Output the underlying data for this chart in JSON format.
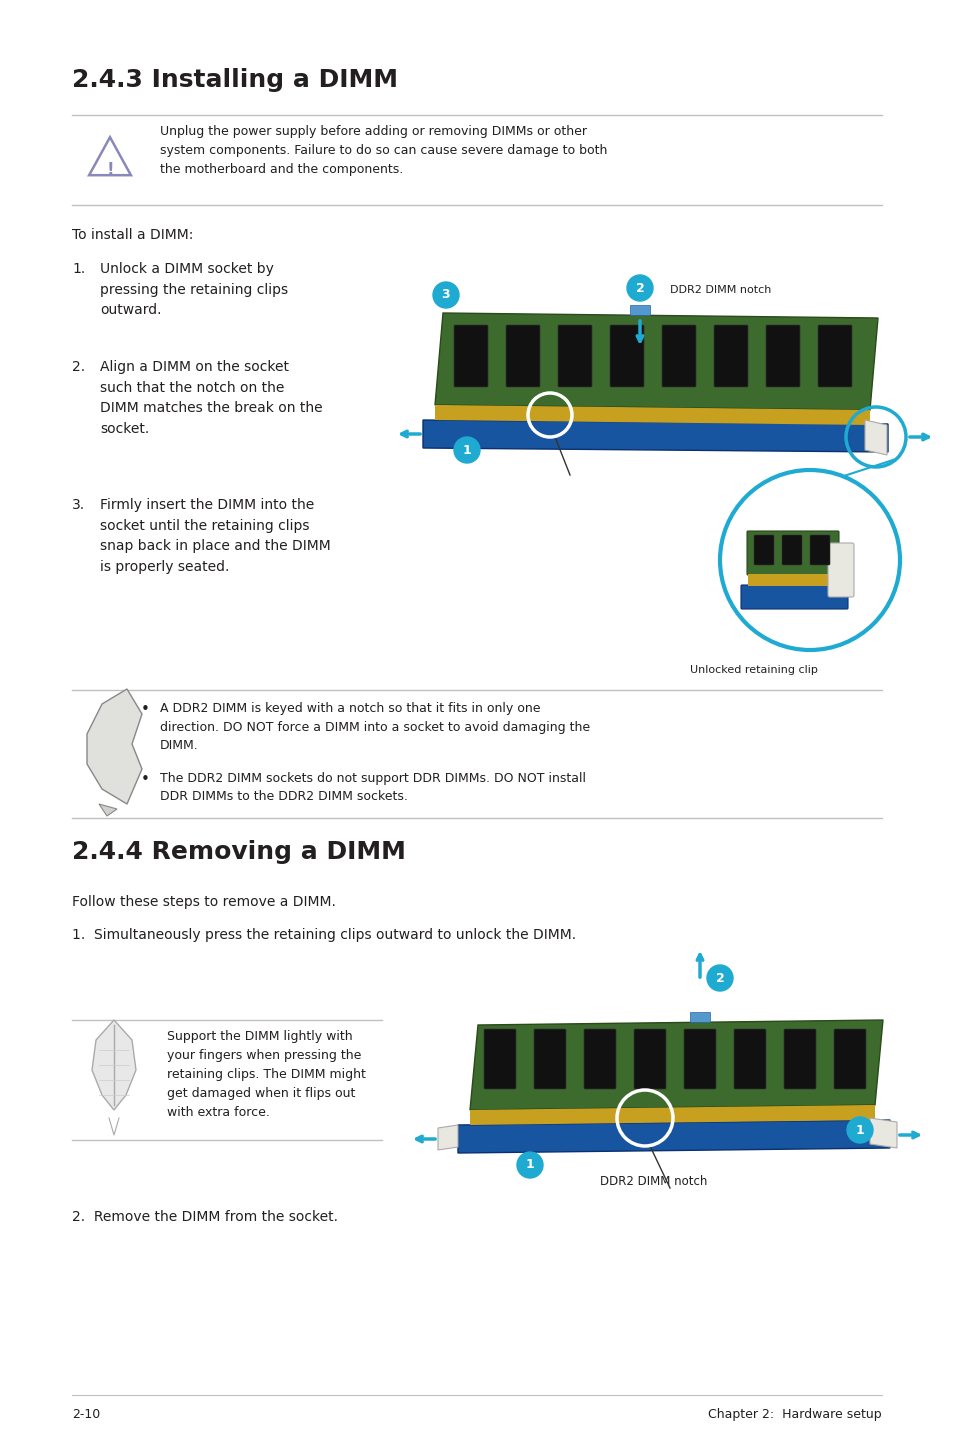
{
  "bg_color": "#ffffff",
  "page_width": 9.54,
  "page_height": 14.38,
  "section1_title": "2.4.3 Installing a DIMM",
  "section2_title": "2.4.4 Removing a DIMM",
  "warning_text": "Unplug the power supply before adding or removing DIMMs or other\nsystem components. Failure to do so can cause severe damage to both\nthe motherboard and the components.",
  "install_intro": "To install a DIMM:",
  "install_step1": "1.  Unlock a DIMM socket by\n     pressing the retaining clips\n     outward.",
  "install_step2": "2.  Align a DIMM on the socket\n     such that the notch on the\n     DIMM matches the break on the\n     socket.",
  "install_step3": "3.  Firmly insert the DIMM into the\n     socket until the retaining clips\n     snap back in place and the DIMM\n     is properly seated.",
  "note_bullet1": "A DDR2 DIMM is keyed with a notch so that it fits in only one\ndirection. DO NOT force a DIMM into a socket to avoid damaging the\nDIMM.",
  "note_bullet2": "The DDR2 DIMM sockets do not support DDR DIMMs. DO NOT install\nDDR DIMMs to the DDR2 DIMM sockets.",
  "remove_intro": "Follow these steps to remove a DIMM.",
  "remove_step1": "1.  Simultaneously press the retaining clips outward to unlock the DIMM.",
  "remove_note": "Support the DIMM lightly with\nyour fingers when pressing the\nretaining clips. The DIMM might\nget damaged when it flips out\nwith extra force.",
  "remove_step2": "2.  Remove the DIMM from the socket.",
  "footer_left": "2-10",
  "footer_right": "Chapter 2:  Hardware setup",
  "unlocked_clip_label": "Unlocked retaining clip",
  "ddr2_notch_label1": "DDR2 DIMM notch",
  "ddr2_notch_label2": "DDR2 DIMM notch",
  "cyan_color": "#1eaad1",
  "text_color": "#231f20",
  "warn_icon_color": "#8888cc",
  "gray_line_color": "#c0c0c0"
}
